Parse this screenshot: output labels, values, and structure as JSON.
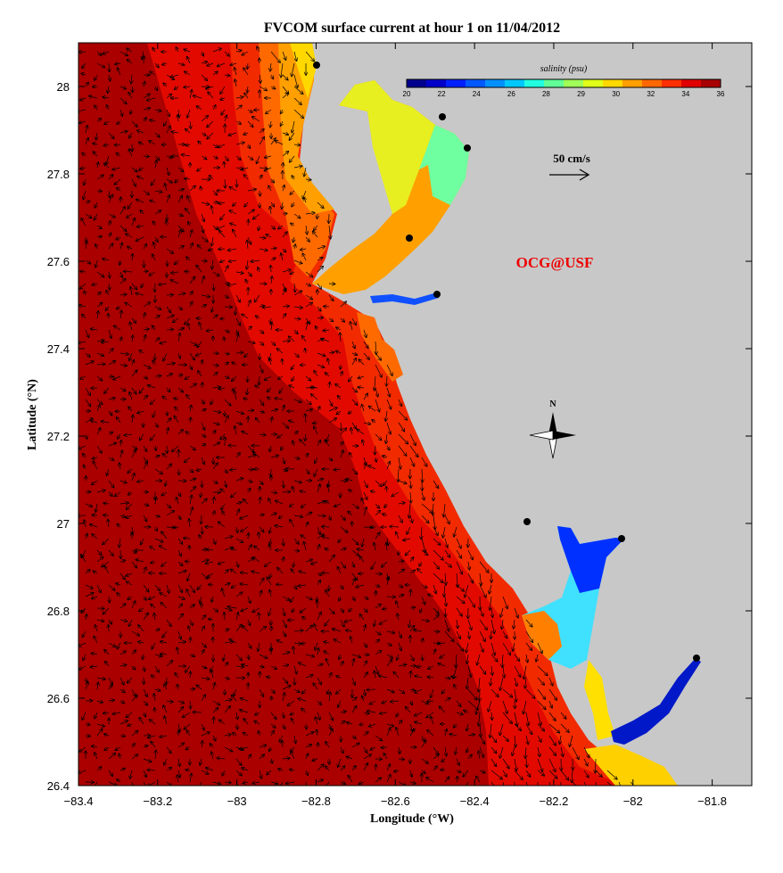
{
  "title": "FVCOM surface current at hour 1 on 11/04/2012",
  "axes": {
    "xlabel": "Longitude (°W)",
    "ylabel": "Latitude (°N)",
    "xlim": [
      -83.4,
      -81.7
    ],
    "ylim": [
      26.4,
      28.1
    ],
    "xticks": [
      -83.4,
      -83.2,
      -83,
      -82.8,
      -82.6,
      -82.4,
      -82.2,
      -82,
      -81.8
    ],
    "xtick_labels": [
      "−83.4",
      "−83.2",
      "−83",
      "−82.8",
      "−82.6",
      "−82.4",
      "−82.2",
      "−82",
      "−81.8"
    ],
    "yticks": [
      28,
      27.8,
      27.6,
      27.4,
      27.2,
      27,
      26.8,
      26.6,
      26.4
    ],
    "ytick_labels": [
      "28",
      "27.8",
      "27.6",
      "27.4",
      "27.2",
      "27",
      "26.8",
      "26.6",
      "26.4"
    ]
  },
  "colorbar": {
    "label": "salinity (psu)",
    "min": 20,
    "max": 36,
    "tick_labels": [
      "20",
      "22",
      "24",
      "26",
      "28",
      "29",
      "30",
      "32",
      "34",
      "36"
    ],
    "colors": [
      "#00008f",
      "#0000c8",
      "#0020ff",
      "#0058ff",
      "#0090ff",
      "#00c8ff",
      "#20ffe0",
      "#60ff98",
      "#a0ff58",
      "#e0ff18",
      "#ffd800",
      "#ffa000",
      "#ff6800",
      "#ff3000",
      "#e00000",
      "#a80000"
    ]
  },
  "scale_arrow": {
    "label": "50 cm/s",
    "speed_cm_s": 50
  },
  "watermark": "OCG@USF",
  "north_label": "N",
  "colors": {
    "land": "#c8c8c8",
    "ocean_deep": "#aa0000",
    "ocean_mid": "#e20a00",
    "ocean_shelf": "#f22a00",
    "coastal_orange": "#ff6a00",
    "watermark": "#ee0000"
  }
}
